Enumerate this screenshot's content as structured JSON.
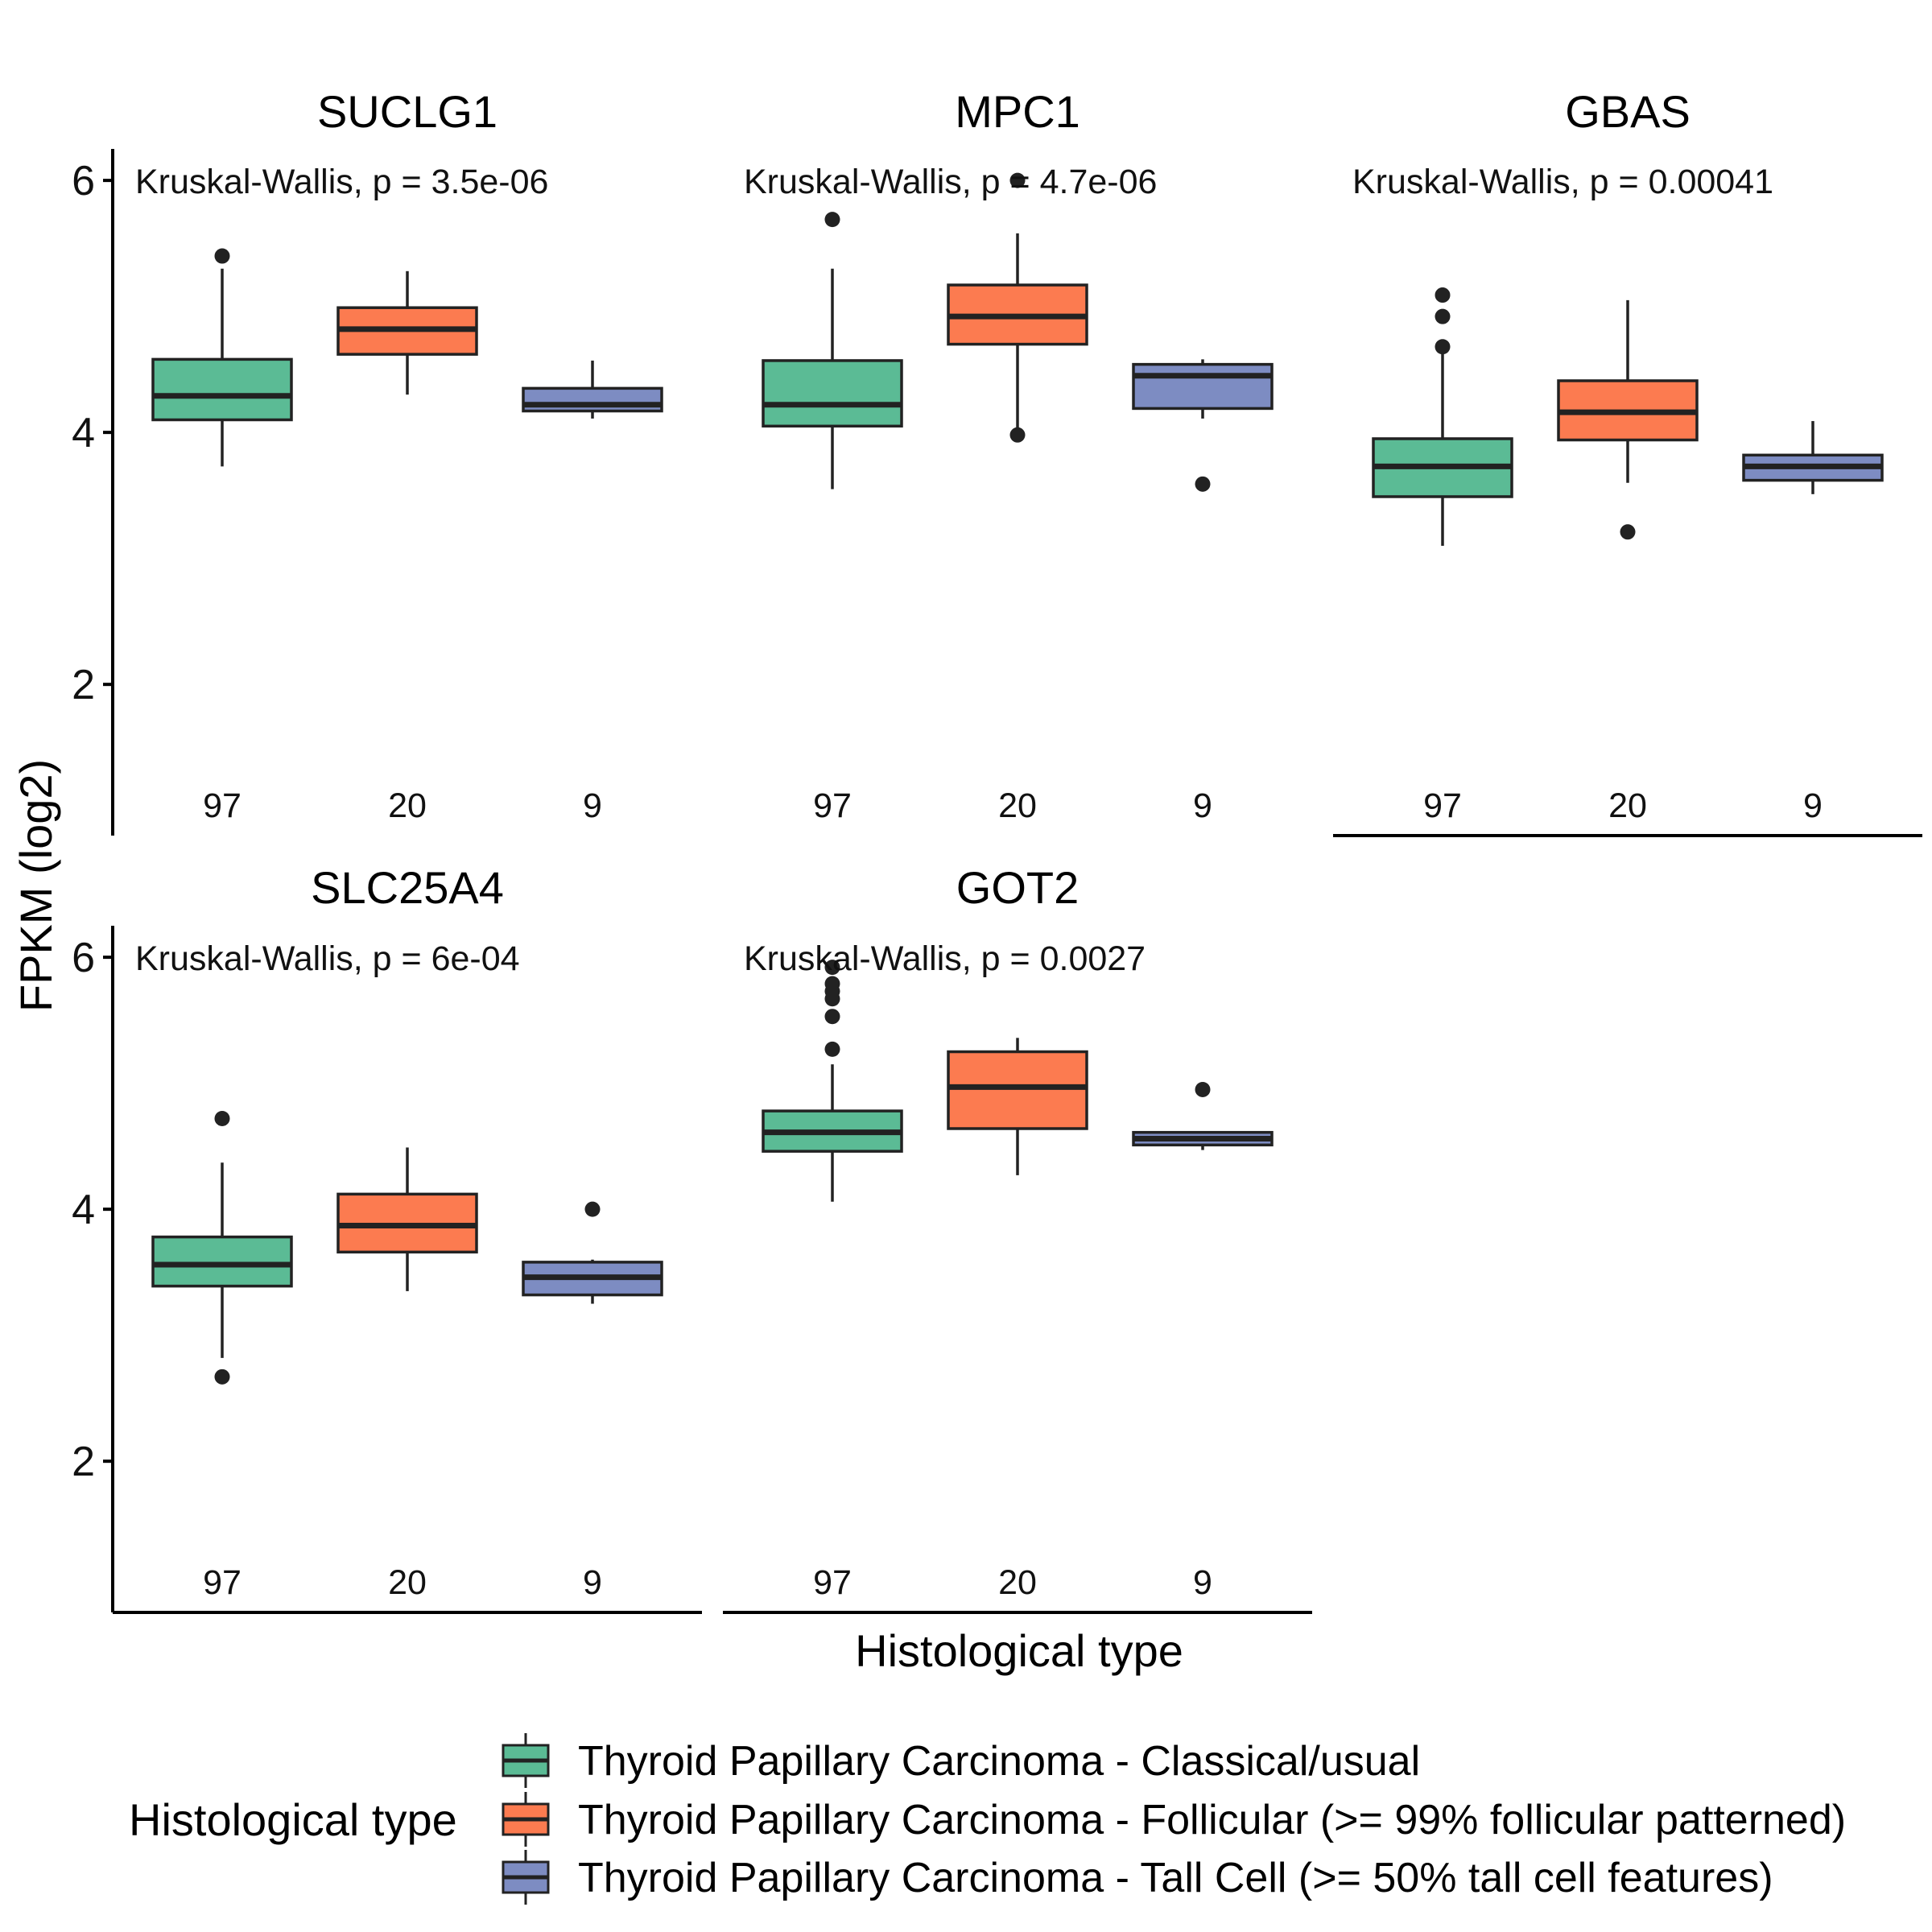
{
  "chart_data": {
    "type": "boxplot",
    "ylabel": "FPKM (log2)",
    "xlabel": "Histological type",
    "ylim": [
      0.8,
      6.25
    ],
    "yticks": [
      2,
      4,
      6
    ],
    "grid": false,
    "legend": {
      "title": "Histological type",
      "position": "bottom",
      "entries": [
        {
          "name": "Thyroid Papillary Carcinoma - Classical/usual",
          "color": "#5BBB95"
        },
        {
          "name": "Thyroid Papillary Carcinoma - Follicular (>= 99% follicular patterned)",
          "color": "#FC7B50"
        },
        {
          "name": "Thyroid Papillary Carcinoma - Tall Cell (>= 50% tall cell features)",
          "color": "#7D8CC2"
        }
      ]
    },
    "panels": [
      {
        "gene": "SUCLG1",
        "stat": "Kruskal-Wallis, p = 3.5e-06",
        "groups": [
          {
            "n": "97",
            "q1": 4.1,
            "median": 4.29,
            "q3": 4.58,
            "lower": 3.73,
            "upper": 5.3,
            "outliers": [
              5.4
            ]
          },
          {
            "n": "20",
            "q1": 4.62,
            "median": 4.82,
            "q3": 4.99,
            "lower": 4.3,
            "upper": 5.28,
            "outliers": []
          },
          {
            "n": "9",
            "q1": 4.17,
            "median": 4.22,
            "q3": 4.35,
            "lower": 4.11,
            "upper": 4.57,
            "outliers": []
          }
        ]
      },
      {
        "gene": "MPC1",
        "stat": "Kruskal-Wallis, p = 4.7e-06",
        "groups": [
          {
            "n": "97",
            "q1": 4.05,
            "median": 4.22,
            "q3": 4.57,
            "lower": 3.55,
            "upper": 5.3,
            "outliers": [
              5.69
            ]
          },
          {
            "n": "20",
            "q1": 4.7,
            "median": 4.92,
            "q3": 5.17,
            "lower": 4.0,
            "upper": 5.58,
            "outliers": [
              3.98,
              6.0
            ]
          },
          {
            "n": "9",
            "q1": 4.19,
            "median": 4.45,
            "q3": 4.54,
            "lower": 4.11,
            "upper": 4.58,
            "outliers": [
              3.59
            ]
          }
        ]
      },
      {
        "gene": "GBAS",
        "stat": "Kruskal-Wallis, p = 0.00041",
        "groups": [
          {
            "n": "97",
            "q1": 3.49,
            "median": 3.73,
            "q3": 3.95,
            "lower": 3.1,
            "upper": 4.65,
            "outliers": [
              4.68,
              4.92,
              5.09
            ]
          },
          {
            "n": "20",
            "q1": 3.94,
            "median": 4.16,
            "q3": 4.41,
            "lower": 3.6,
            "upper": 5.05,
            "outliers": [
              3.21
            ]
          },
          {
            "n": "9",
            "q1": 3.62,
            "median": 3.73,
            "q3": 3.82,
            "lower": 3.51,
            "upper": 4.09,
            "outliers": []
          }
        ]
      },
      {
        "gene": "SLC25A4",
        "stat": "Kruskal-Wallis, p = 6e-04",
        "groups": [
          {
            "n": "97",
            "q1": 3.39,
            "median": 3.56,
            "q3": 3.78,
            "lower": 2.82,
            "upper": 4.37,
            "outliers": [
              2.67,
              4.72
            ]
          },
          {
            "n": "20",
            "q1": 3.66,
            "median": 3.87,
            "q3": 4.12,
            "lower": 3.35,
            "upper": 4.49,
            "outliers": []
          },
          {
            "n": "9",
            "q1": 3.32,
            "median": 3.46,
            "q3": 3.58,
            "lower": 3.25,
            "upper": 3.6,
            "outliers": [
              4.0
            ]
          }
        ]
      },
      {
        "gene": "GOT2",
        "stat": "Kruskal-Wallis, p = 0.0027",
        "groups": [
          {
            "n": "97",
            "q1": 4.46,
            "median": 4.61,
            "q3": 4.78,
            "lower": 4.06,
            "upper": 5.15,
            "outliers": [
              5.27,
              5.53,
              5.67,
              5.73,
              5.79,
              5.92
            ]
          },
          {
            "n": "20",
            "q1": 4.64,
            "median": 4.97,
            "q3": 5.25,
            "lower": 4.27,
            "upper": 5.36,
            "outliers": []
          },
          {
            "n": "9",
            "q1": 4.51,
            "median": 4.56,
            "q3": 4.61,
            "lower": 4.47,
            "upper": 4.61,
            "outliers": [
              4.95
            ]
          }
        ]
      }
    ]
  }
}
